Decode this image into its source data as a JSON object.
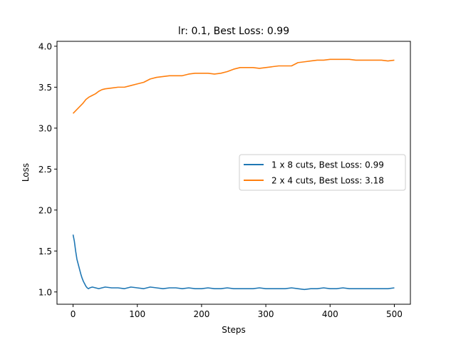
{
  "chart_data": {
    "type": "line",
    "title": "lr: 0.1, Best Loss: 0.99",
    "xlabel": "Steps",
    "ylabel": "Loss",
    "xlim": [
      -25,
      525
    ],
    "ylim": [
      0.85,
      4.06
    ],
    "xticks": [
      0,
      100,
      200,
      300,
      400,
      500
    ],
    "yticks": [
      1.0,
      1.5,
      2.0,
      2.5,
      3.0,
      3.5,
      4.0
    ],
    "xtick_labels": [
      "0",
      "100",
      "200",
      "300",
      "400",
      "500"
    ],
    "ytick_labels": [
      "1.0",
      "1.5",
      "2.0",
      "2.5",
      "3.0",
      "3.5",
      "4.0"
    ],
    "grid": false,
    "legend_position": "center-right",
    "series": [
      {
        "name": "1 x 8 cuts, Best Loss: 0.99",
        "color": "#1f77b4",
        "x": [
          0,
          2,
          4,
          6,
          8,
          10,
          12,
          14,
          16,
          18,
          20,
          22,
          24,
          26,
          30,
          40,
          50,
          60,
          70,
          80,
          90,
          100,
          110,
          120,
          130,
          140,
          150,
          160,
          170,
          180,
          190,
          200,
          210,
          220,
          230,
          240,
          250,
          260,
          270,
          280,
          290,
          300,
          310,
          320,
          330,
          340,
          350,
          360,
          370,
          380,
          390,
          400,
          410,
          420,
          430,
          440,
          450,
          460,
          470,
          480,
          490,
          500
        ],
        "y": [
          1.7,
          1.62,
          1.5,
          1.4,
          1.34,
          1.28,
          1.22,
          1.17,
          1.13,
          1.1,
          1.07,
          1.05,
          1.04,
          1.05,
          1.06,
          1.04,
          1.06,
          1.05,
          1.05,
          1.04,
          1.06,
          1.05,
          1.04,
          1.06,
          1.05,
          1.04,
          1.05,
          1.05,
          1.04,
          1.05,
          1.04,
          1.04,
          1.05,
          1.04,
          1.04,
          1.05,
          1.04,
          1.04,
          1.04,
          1.04,
          1.05,
          1.04,
          1.04,
          1.04,
          1.04,
          1.05,
          1.04,
          1.03,
          1.04,
          1.04,
          1.05,
          1.04,
          1.04,
          1.05,
          1.04,
          1.04,
          1.04,
          1.04,
          1.04,
          1.04,
          1.04,
          1.05
        ]
      },
      {
        "name": "2 x 4 cuts, Best Loss: 3.18",
        "color": "#ff7f0e",
        "x": [
          0,
          5,
          10,
          15,
          20,
          25,
          30,
          35,
          40,
          45,
          50,
          60,
          70,
          80,
          90,
          100,
          110,
          120,
          130,
          140,
          150,
          160,
          170,
          180,
          190,
          200,
          210,
          220,
          230,
          240,
          250,
          260,
          270,
          280,
          290,
          300,
          310,
          320,
          330,
          340,
          350,
          360,
          370,
          380,
          390,
          400,
          410,
          420,
          430,
          440,
          450,
          460,
          470,
          480,
          490,
          500
        ],
        "y": [
          3.18,
          3.22,
          3.26,
          3.3,
          3.35,
          3.38,
          3.4,
          3.42,
          3.45,
          3.47,
          3.48,
          3.49,
          3.5,
          3.5,
          3.52,
          3.54,
          3.56,
          3.6,
          3.62,
          3.63,
          3.64,
          3.64,
          3.64,
          3.66,
          3.67,
          3.67,
          3.67,
          3.66,
          3.67,
          3.69,
          3.72,
          3.74,
          3.74,
          3.74,
          3.73,
          3.74,
          3.75,
          3.76,
          3.76,
          3.76,
          3.8,
          3.81,
          3.82,
          3.83,
          3.83,
          3.84,
          3.84,
          3.84,
          3.84,
          3.83,
          3.83,
          3.83,
          3.83,
          3.83,
          3.82,
          3.83
        ]
      }
    ]
  }
}
